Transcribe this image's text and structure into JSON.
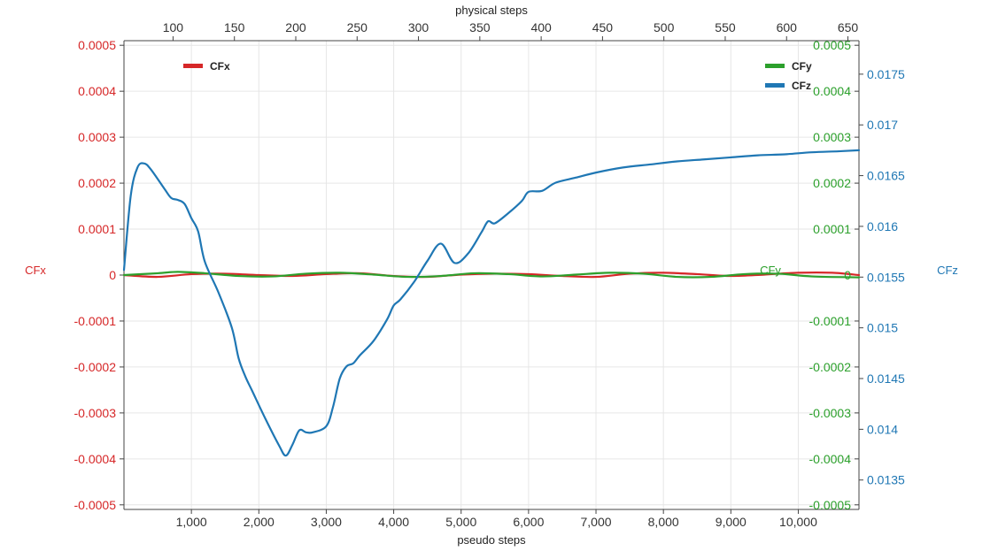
{
  "chart_data": {
    "type": "line",
    "xlabel": "pseudo steps",
    "x2label": "physical steps",
    "xlim": [
      0,
      10900
    ],
    "x2lim": [
      60,
      659
    ],
    "x_ticks": [
      1000,
      2000,
      3000,
      4000,
      5000,
      6000,
      7000,
      8000,
      9000,
      10000
    ],
    "x_tick_labels": [
      "1,000",
      "2,000",
      "3,000",
      "4,000",
      "5,000",
      "6,000",
      "7,000",
      "8,000",
      "9,000",
      "10,000"
    ],
    "x2_ticks": [
      100,
      150,
      200,
      250,
      300,
      350,
      400,
      450,
      500,
      550,
      600,
      650
    ],
    "x2_tick_labels": [
      "100",
      "150",
      "200",
      "250",
      "300",
      "350",
      "400",
      "450",
      "500",
      "550",
      "600",
      "650"
    ],
    "y_axes": [
      {
        "id": "y1",
        "label": "CFx",
        "color": "#d62728",
        "range": [
          -0.00051,
          0.00051
        ],
        "ticks": [
          -0.0005,
          -0.0004,
          -0.0003,
          -0.0002,
          -0.0001,
          0,
          0.0001,
          0.0002,
          0.0003,
          0.0004,
          0.0005
        ],
        "tick_labels": [
          "-0.0005",
          "-0.0004",
          "-0.0003",
          "-0.0002",
          "-0.0001",
          "0",
          "0.0001",
          "0.0002",
          "0.0003",
          "0.0004",
          "0.0005"
        ]
      },
      {
        "id": "y2",
        "label": "CFy",
        "color": "#2ca02c",
        "range": [
          -0.00051,
          0.00051
        ],
        "ticks": [
          -0.0005,
          -0.0004,
          -0.0003,
          -0.0002,
          -0.0001,
          0,
          0.0001,
          0.0002,
          0.0003,
          0.0004,
          0.0005
        ],
        "tick_labels": [
          "-0.0005",
          "-0.0004",
          "-0.0003",
          "-0.0002",
          "-0.0001",
          "0",
          "0.0001",
          "0.0002",
          "0.0003",
          "0.0004",
          "0.0005"
        ]
      },
      {
        "id": "y3",
        "label": "CFz",
        "color": "#1f77b4",
        "range": [
          0.01321,
          0.01783
        ],
        "ticks": [
          0.0135,
          0.014,
          0.0145,
          0.015,
          0.0155,
          0.016,
          0.0165,
          0.017,
          0.0175
        ],
        "tick_labels": [
          "0.0135",
          "0.014",
          "0.0145",
          "0.015",
          "0.0155",
          "0.016",
          "0.0165",
          "0.017",
          "0.0175"
        ]
      }
    ],
    "grid": true,
    "legend": [
      {
        "name": "CFx",
        "color": "#d62728",
        "position": "top-left"
      },
      {
        "name": "CFy",
        "color": "#2ca02c",
        "position": "top-right"
      },
      {
        "name": "CFz",
        "color": "#1f77b4",
        "position": "top-right"
      }
    ],
    "series": [
      {
        "name": "CFx",
        "axis": "y1",
        "color": "#d62728",
        "x": [
          0,
          500,
          1000,
          1500,
          2000,
          2500,
          3000,
          3500,
          4000,
          4500,
          5000,
          5500,
          6000,
          6500,
          7000,
          7500,
          8000,
          8500,
          9000,
          9500,
          10000,
          10500,
          10900
        ],
        "y": [
          0,
          -4e-06,
          2e-06,
          3e-06,
          0,
          -2e-06,
          2e-06,
          4e-06,
          -2e-06,
          -4e-06,
          1e-06,
          3e-06,
          2e-06,
          -2e-06,
          -4e-06,
          3e-06,
          5e-06,
          2e-06,
          -2e-06,
          1e-06,
          5e-06,
          5e-06,
          0
        ]
      },
      {
        "name": "CFy",
        "axis": "y2",
        "color": "#2ca02c",
        "x": [
          0,
          500,
          800,
          1200,
          1700,
          2200,
          2700,
          3200,
          3700,
          4200,
          4700,
          5200,
          5700,
          6200,
          6700,
          7200,
          7700,
          8200,
          8700,
          9200,
          9700,
          10200,
          10900
        ],
        "y": [
          0,
          4e-06,
          7e-06,
          4e-06,
          -2e-06,
          -3e-06,
          3e-06,
          5e-06,
          1e-06,
          -4e-06,
          -2e-06,
          4e-06,
          2e-06,
          -3e-06,
          1e-06,
          5e-06,
          3e-06,
          -4e-06,
          -4e-06,
          2e-06,
          3e-06,
          -3e-06,
          -5e-06
        ]
      },
      {
        "name": "CFz",
        "axis": "y3",
        "color": "#1f77b4",
        "x": [
          0,
          100,
          200,
          300,
          400,
          600,
          700,
          800,
          900,
          1000,
          1100,
          1200,
          1400,
          1600,
          1700,
          1800,
          1900,
          2100,
          2300,
          2400,
          2500,
          2600,
          2700,
          2800,
          3000,
          3100,
          3200,
          3300,
          3400,
          3500,
          3700,
          3900,
          4000,
          4100,
          4300,
          4500,
          4700,
          4900,
          5100,
          5300,
          5400,
          5500,
          5700,
          5900,
          6000,
          6200,
          6400,
          6700,
          7000,
          7400,
          7800,
          8200,
          8600,
          9000,
          9400,
          9800,
          10200,
          10600,
          10900
        ],
        "y": [
          0.01557,
          0.0163,
          0.01658,
          0.01662,
          0.01656,
          0.01637,
          0.01628,
          0.01626,
          0.01622,
          0.01608,
          0.01595,
          0.01565,
          0.01535,
          0.015,
          0.0147,
          0.01452,
          0.01438,
          0.0141,
          0.01384,
          0.01374,
          0.01385,
          0.01399,
          0.01397,
          0.01397,
          0.01403,
          0.01422,
          0.0145,
          0.01462,
          0.01465,
          0.01473,
          0.01487,
          0.01508,
          0.01522,
          0.01528,
          0.01545,
          0.01566,
          0.01583,
          0.01564,
          0.01573,
          0.01594,
          0.01605,
          0.01603,
          0.01613,
          0.01625,
          0.01634,
          0.01635,
          0.01643,
          0.01648,
          0.01653,
          0.01658,
          0.01661,
          0.01664,
          0.01666,
          0.01668,
          0.0167,
          0.01671,
          0.01673,
          0.01674,
          0.01675
        ]
      }
    ]
  }
}
